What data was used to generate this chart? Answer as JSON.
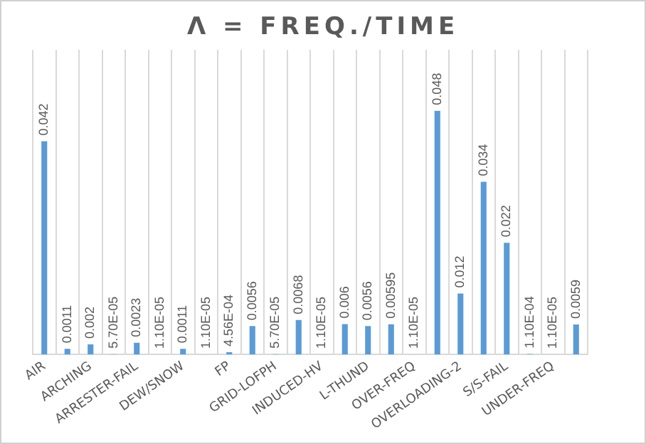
{
  "chart_data": {
    "type": "bar",
    "title": "Λ = FREQ./TIME",
    "categories": [
      "AIR",
      null,
      "ARCHING",
      null,
      "ARRESTER-FAIL",
      null,
      "DEW/SNOW",
      null,
      "FP",
      null,
      "GRID-LOFPH",
      null,
      "INDUCED-HV",
      null,
      "L-THUND",
      null,
      "OVER-FREQ",
      null,
      "OVERLOADING-2",
      null,
      "S/S-FAIL",
      null,
      "UNDER-FREQ",
      null
    ],
    "values": [
      0.042,
      0.0011,
      0.002,
      5.7e-05,
      0.0023,
      1.1e-05,
      0.0011,
      1.1e-05,
      0.000456,
      0.0056,
      5.7e-05,
      0.0068,
      1.1e-05,
      0.006,
      0.0056,
      0.00595,
      1.1e-05,
      0.048,
      0.012,
      0.034,
      0.022,
      0.00011,
      1.1e-05,
      0.0059
    ],
    "value_labels": [
      "0.042",
      "0.0011",
      "0.002",
      "5.70E-05",
      "0.0023",
      "1.10E-05",
      "0.0011",
      "1.10E-05",
      "4.56E-04",
      "0.0056",
      "5.70E-05",
      "0.0068",
      "1.10E-05",
      "0.006",
      "0.0056",
      "0.00595",
      "1.10E-05",
      "0.048",
      "0.012",
      "0.034",
      "0.022",
      "1.10E-04",
      "1.10E-05",
      "0.0059"
    ],
    "color": "#5b9bd5",
    "grid": "x",
    "tick_labels": "x"
  }
}
